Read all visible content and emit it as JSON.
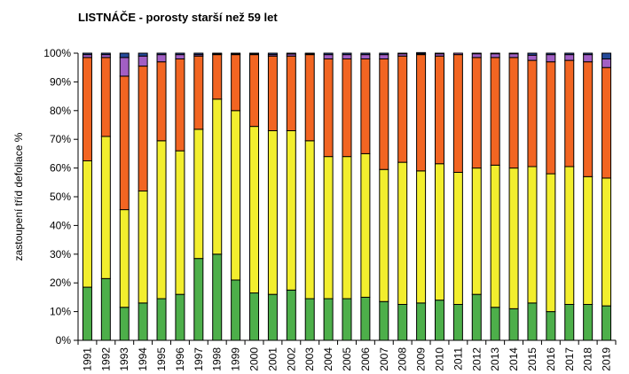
{
  "chart_data": {
    "type": "bar",
    "stacked": true,
    "title": "LISTNÁČE - porosty starší než 59 let",
    "ylabel": "zastoupení tříd defoliace %",
    "xlabel": "",
    "ylim": [
      0,
      100
    ],
    "y_tick_labels": [
      "0%",
      "10%",
      "20%",
      "30%",
      "40%",
      "50%",
      "60%",
      "70%",
      "80%",
      "90%",
      "100%"
    ],
    "categories": [
      "1991",
      "1992",
      "1993",
      "1994",
      "1995",
      "1996",
      "1997",
      "1998",
      "1999",
      "2000",
      "2001",
      "2002",
      "2003",
      "2004",
      "2005",
      "2006",
      "2007",
      "2008",
      "2009",
      "2010",
      "2011",
      "2012",
      "2013",
      "2014",
      "2015",
      "2016",
      "2017",
      "2018",
      "2019"
    ],
    "series": [
      {
        "color": "#4daf4a",
        "values": [
          18.5,
          21.5,
          11.5,
          13,
          14.5,
          16,
          28.5,
          30,
          21,
          16.5,
          16,
          17.5,
          14.5,
          14.5,
          14.5,
          15,
          13.5,
          12.5,
          13,
          14,
          12.5,
          16,
          11.5,
          11,
          13,
          10,
          12.5,
          12.5,
          12
        ]
      },
      {
        "color": "#f2ee2e",
        "values": [
          44,
          49.5,
          34,
          39,
          55,
          50,
          45,
          54,
          59,
          58,
          57,
          55.5,
          55,
          49.5,
          49.5,
          50,
          46,
          49.5,
          46,
          47.5,
          46,
          44,
          49.5,
          49,
          47.5,
          48,
          48,
          44.5,
          44.5
        ]
      },
      {
        "color": "#f26522",
        "values": [
          36,
          27.5,
          46.5,
          43.5,
          27.5,
          32,
          25.5,
          15.5,
          19.5,
          25,
          26,
          26,
          30,
          34,
          34,
          33,
          38.5,
          37,
          40.5,
          37.5,
          41,
          38.5,
          37.5,
          38.5,
          37,
          39,
          37,
          40,
          38.5
        ]
      },
      {
        "color": "#a25fc4",
        "values": [
          1.0,
          1.0,
          6.5,
          3.5,
          2.5,
          1.5,
          0.5,
          0.3,
          0.3,
          0.3,
          0.5,
          0.7,
          0.3,
          1.5,
          1.5,
          1.5,
          1.5,
          0.8,
          0.3,
          0.8,
          0.5,
          1.3,
          1.3,
          1.3,
          1.8,
          2.5,
          2.0,
          2.5,
          3.0
        ]
      },
      {
        "color": "#244a9a",
        "values": [
          0.5,
          0.5,
          1.5,
          1.0,
          0.5,
          0.5,
          0.5,
          0.2,
          0.2,
          0.2,
          0.5,
          0.3,
          0.2,
          0.5,
          0.5,
          0.5,
          0.5,
          0.2,
          0.4,
          0.2,
          0.0,
          0.2,
          0.2,
          0.2,
          0.7,
          0.5,
          0.5,
          0.5,
          2.0
        ]
      }
    ],
    "grid": false,
    "legend": "none"
  }
}
